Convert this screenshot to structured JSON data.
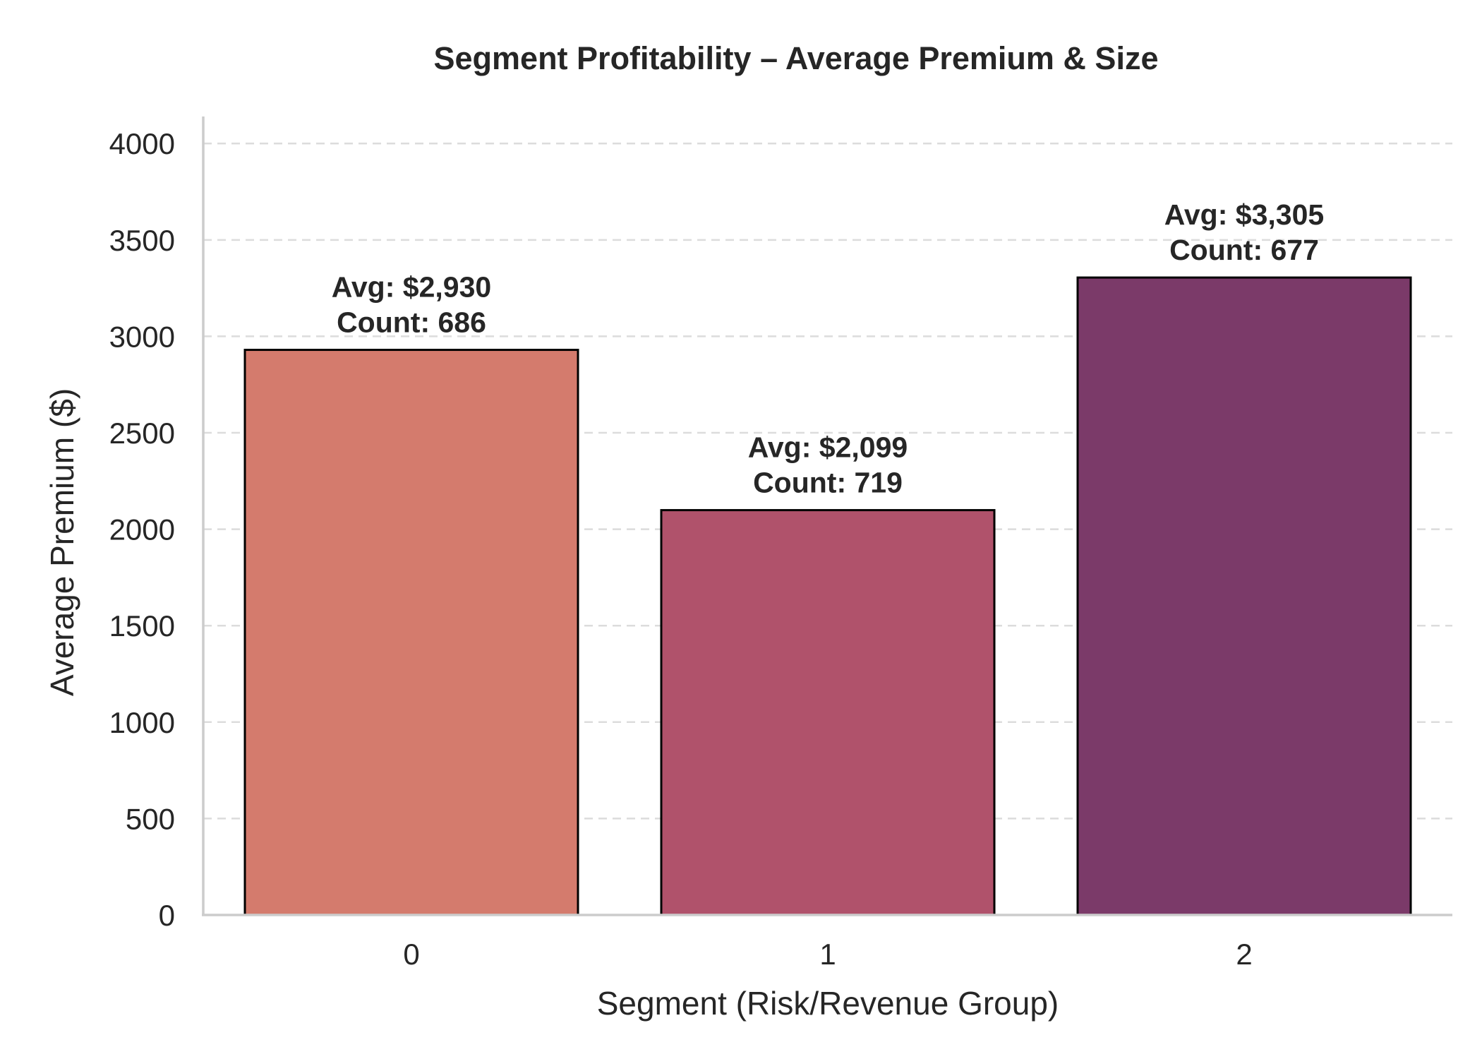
{
  "chart_data": {
    "type": "bar",
    "title": "Segment Profitability – Average Premium & Size",
    "xlabel": "Segment (Risk/Revenue Group)",
    "ylabel": "Average Premium ($)",
    "categories": [
      "0",
      "1",
      "2"
    ],
    "values": [
      2930,
      2099,
      3305
    ],
    "counts": [
      686,
      719,
      677
    ],
    "bar_labels": [
      [
        "Avg: $2,930",
        "Count: 686"
      ],
      [
        "Avg: $2,099",
        "Count: 719"
      ],
      [
        "Avg: $3,305",
        "Count: 677"
      ]
    ],
    "colors": [
      "#d47b6d",
      "#b0526b",
      "#7b3a69"
    ],
    "ylim": [
      0,
      4140
    ],
    "yticks": [
      0,
      500,
      1000,
      1500,
      2000,
      2500,
      3000,
      3500,
      4000
    ],
    "grid": true,
    "grid_axis": "y",
    "legend": "none"
  }
}
